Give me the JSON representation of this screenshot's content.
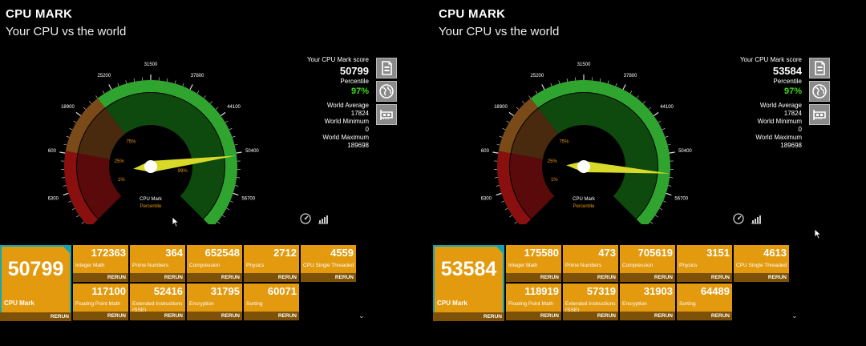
{
  "panels": [
    {
      "title": "CPU MARK",
      "subtitle": "Your CPU vs the world",
      "gauge": {
        "scale_labels": [
          "0",
          "6300",
          "12600",
          "18900",
          "25200",
          "31500",
          "37800",
          "44100",
          "50400",
          "56700",
          "63000"
        ],
        "percent_labels": [
          "1%",
          "25%",
          "75%",
          "99%"
        ],
        "legend_cpumark": "CPU Mark",
        "legend_percentile": "Percentile",
        "needle_value": 50799
      },
      "stats": {
        "score_label": "Your CPU Mark score",
        "score": "50799",
        "percentile_label": "Percentile",
        "percentile": "97%",
        "world_avg_label": "World Average",
        "world_avg": "17824",
        "world_min_label": "World Minimum",
        "world_min": "0",
        "world_max_label": "World Maximum",
        "world_max": "189698"
      },
      "main_tile": {
        "value": "50799",
        "label": "CPU Mark",
        "rerun": "RERUN"
      },
      "tiles": [
        {
          "value": "172363",
          "label": "Integer Math",
          "rerun": "RERUN"
        },
        {
          "value": "364",
          "label": "Prime Numbers",
          "rerun": "RERUN"
        },
        {
          "value": "652548",
          "label": "Compression",
          "rerun": "RERUN"
        },
        {
          "value": "2712",
          "label": "Physics",
          "rerun": "RERUN"
        },
        {
          "value": "4559",
          "label": "CPU Single Threaded",
          "rerun": "RERUN"
        },
        {
          "value": "117100",
          "label": "Floating Point Math",
          "rerun": "RERUN"
        },
        {
          "value": "52416",
          "label": "Extended Instructions (SSE)",
          "rerun": "RERUN"
        },
        {
          "value": "31795",
          "label": "Encryption",
          "rerun": "RERUN"
        },
        {
          "value": "60071",
          "label": "Sorting",
          "rerun": "RERUN"
        }
      ]
    },
    {
      "title": "CPU MARK",
      "subtitle": "Your CPU vs the world",
      "gauge": {
        "scale_labels": [
          "0",
          "6300",
          "12600",
          "18900",
          "25200",
          "31500",
          "37800",
          "44100",
          "50400",
          "56700",
          "63000"
        ],
        "percent_labels": [
          "1%",
          "25%",
          "75%",
          "99%"
        ],
        "legend_cpumark": "CPU Mark",
        "legend_percentile": "Percentile",
        "needle_value": 53584
      },
      "stats": {
        "score_label": "Your CPU Mark score",
        "score": "53584",
        "percentile_label": "Percentile",
        "percentile": "97%",
        "world_avg_label": "World Average",
        "world_avg": "17824",
        "world_min_label": "World Minimum",
        "world_min": "0",
        "world_max_label": "World Maximum",
        "world_max": "189698"
      },
      "main_tile": {
        "value": "53584",
        "label": "CPU Mark",
        "rerun": "RERUN"
      },
      "tiles": [
        {
          "value": "175580",
          "label": "Integer Math",
          "rerun": "RERUN"
        },
        {
          "value": "473",
          "label": "Prime Numbers",
          "rerun": "RERUN"
        },
        {
          "value": "705619",
          "label": "Compression",
          "rerun": "RERUN"
        },
        {
          "value": "3151",
          "label": "Physics",
          "rerun": "RERUN"
        },
        {
          "value": "4613",
          "label": "CPU Single Threaded",
          "rerun": "RERUN"
        },
        {
          "value": "118919",
          "label": "Floating Point Math",
          "rerun": "RERUN"
        },
        {
          "value": "57319",
          "label": "Extended Instructions (SSE)",
          "rerun": "RERUN"
        },
        {
          "value": "31903",
          "label": "Encryption",
          "rerun": "RERUN"
        },
        {
          "value": "64489",
          "label": "Sorting",
          "rerun": "RERUN"
        }
      ]
    }
  ],
  "icons": {
    "side_buttons": [
      "report-icon",
      "globe-icon",
      "hardware-card-icon"
    ],
    "small": [
      "speedometer-icon",
      "bar-chart-icon"
    ],
    "scroll": "chevron-down-icon"
  },
  "colors": {
    "tile": "#e39a0e",
    "tile_rerun_bar": "#7d5208",
    "main_tile_border": "#13a5b0",
    "percentile_green": "#3ddc1a",
    "gauge_red": "#5a0a0a",
    "gauge_brown": "#4a2a0e",
    "gauge_green": "#0e4a0e",
    "needle": "#d9d92a"
  }
}
